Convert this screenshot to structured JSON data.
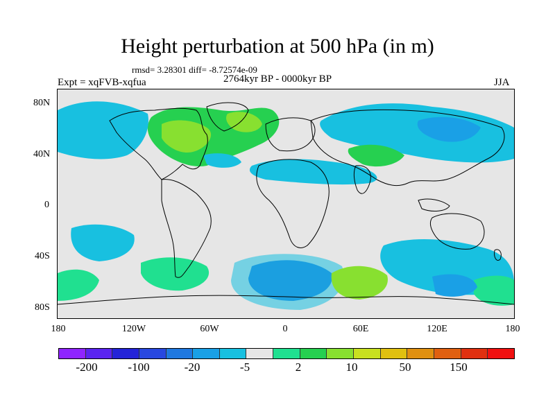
{
  "title": "Height perturbation at 500 hPa (in m)",
  "stats_text": "rmsd= 3.28301 diff= -8.72574e-09",
  "experiment": "Expt = xqFVB-xqfua",
  "period": "2764kyr BP - 0000kyr BP",
  "season": "JJA",
  "map": {
    "latitude_labels": [
      "80N",
      "40N",
      "0",
      "40S",
      "80S"
    ],
    "longitude_labels": [
      "180",
      "120W",
      "60W",
      "0",
      "60E",
      "120E",
      "180"
    ],
    "background_color": "#e6e6e6",
    "coastline_color": "#000000"
  },
  "colorbar": {
    "colors": [
      "#8f24ff",
      "#5a24f0",
      "#2424d8",
      "#2848e0",
      "#1f78e0",
      "#1aa0e6",
      "#18c0e0",
      "#e6e6e6",
      "#20e090",
      "#26d050",
      "#88e030",
      "#c8e020",
      "#e0c010",
      "#e09010",
      "#e06010",
      "#e03010",
      "#f01010"
    ],
    "labels": [
      "-200",
      "-100",
      "-20",
      "-5",
      "2",
      "10",
      "50",
      "150"
    ]
  }
}
